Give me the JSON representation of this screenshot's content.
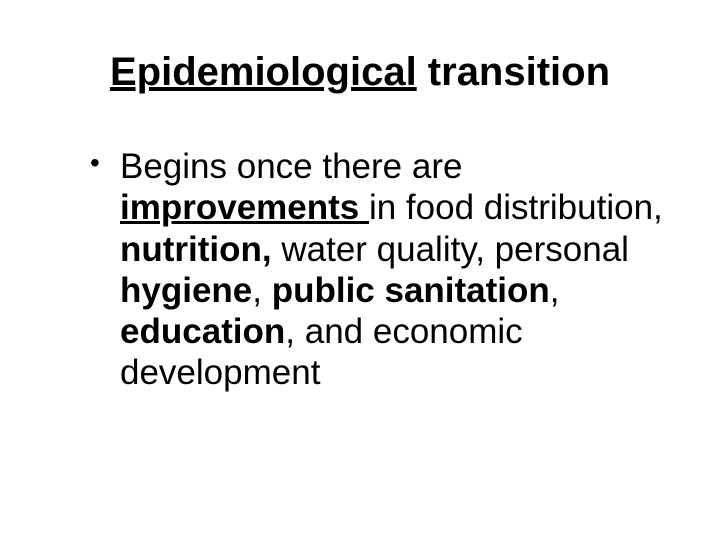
{
  "title": {
    "underlined": "Epidemiological",
    "rest": " transition"
  },
  "bullet": {
    "t1": "Begins once there are ",
    "t2_ub": "improvements ",
    "t3": "in food distribution, ",
    "t4_b": "nutrition,",
    "t5": " water quality, personal ",
    "t6_b": "hygiene",
    "t7": ", ",
    "t8_b": "public sanitation",
    "t9": ", ",
    "t10_b": "education",
    "t11": ", and economic development"
  },
  "style": {
    "background_color": "#ffffff",
    "text_color": "#000000",
    "title_fontsize": 40,
    "body_fontsize": 35,
    "font_family": "Arial"
  }
}
